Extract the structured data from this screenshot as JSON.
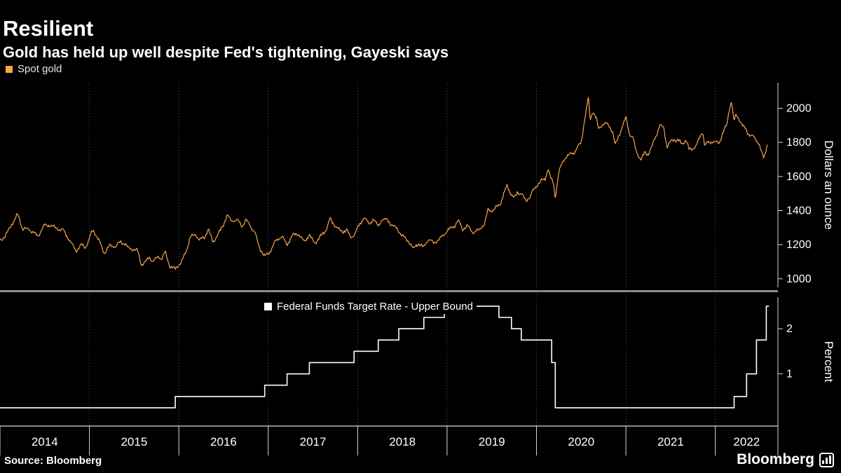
{
  "header": {
    "title": "Resilient",
    "subtitle": "Gold has held up well despite Fed's tightening, Gayeski says"
  },
  "footer": {
    "source": "Source: Bloomberg",
    "brand": "Bloomberg"
  },
  "colors": {
    "background": "#000000",
    "gold": "#F8A54A",
    "fed_line": "#FFFFFF",
    "axis": "#D9D9D9",
    "grid": "#555555",
    "separator": "#8C8C8C",
    "text": "#FFFFFF"
  },
  "x_axis": {
    "xmin": 2014.0,
    "xmax": 2022.7,
    "years": [
      "2014",
      "2015",
      "2016",
      "2017",
      "2018",
      "2019",
      "2020",
      "2021",
      "2022"
    ]
  },
  "chart_data": [
    {
      "type": "line",
      "name": "spot-gold",
      "legend": "Spot gold",
      "ylabel": "Dollars an ounce",
      "ylim": [
        950,
        2150
      ],
      "yticks": [
        1000,
        1200,
        1400,
        1600,
        1800,
        2000
      ],
      "grid": "vertical-dotted",
      "legend_position": "top-left",
      "series": [
        {
          "name": "Spot gold",
          "color": "#F8A54A",
          "noise": 13,
          "points": [
            [
              2014.0,
              1225
            ],
            [
              2014.06,
              1250
            ],
            [
              2014.13,
              1320
            ],
            [
              2014.2,
              1380
            ],
            [
              2014.25,
              1295
            ],
            [
              2014.33,
              1290
            ],
            [
              2014.42,
              1250
            ],
            [
              2014.5,
              1315
            ],
            [
              2014.58,
              1310
            ],
            [
              2014.65,
              1290
            ],
            [
              2014.71,
              1285
            ],
            [
              2014.79,
              1215
            ],
            [
              2014.85,
              1165
            ],
            [
              2014.92,
              1200
            ],
            [
              2014.96,
              1185
            ],
            [
              2015.04,
              1290
            ],
            [
              2015.1,
              1230
            ],
            [
              2015.17,
              1150
            ],
            [
              2015.23,
              1200
            ],
            [
              2015.29,
              1185
            ],
            [
              2015.35,
              1220
            ],
            [
              2015.42,
              1190
            ],
            [
              2015.48,
              1170
            ],
            [
              2015.54,
              1165
            ],
            [
              2015.58,
              1085
            ],
            [
              2015.63,
              1095
            ],
            [
              2015.67,
              1135
            ],
            [
              2015.71,
              1095
            ],
            [
              2015.77,
              1135
            ],
            [
              2015.81,
              1115
            ],
            [
              2015.85,
              1160
            ],
            [
              2015.9,
              1070
            ],
            [
              2015.96,
              1060
            ],
            [
              2016.02,
              1090
            ],
            [
              2016.08,
              1160
            ],
            [
              2016.13,
              1245
            ],
            [
              2016.19,
              1260
            ],
            [
              2016.23,
              1225
            ],
            [
              2016.29,
              1245
            ],
            [
              2016.33,
              1290
            ],
            [
              2016.38,
              1215
            ],
            [
              2016.44,
              1260
            ],
            [
              2016.5,
              1320
            ],
            [
              2016.54,
              1370
            ],
            [
              2016.6,
              1340
            ],
            [
              2016.65,
              1345
            ],
            [
              2016.71,
              1310
            ],
            [
              2016.75,
              1345
            ],
            [
              2016.81,
              1305
            ],
            [
              2016.85,
              1270
            ],
            [
              2016.9,
              1185
            ],
            [
              2016.96,
              1130
            ],
            [
              2017.02,
              1160
            ],
            [
              2017.08,
              1220
            ],
            [
              2017.15,
              1250
            ],
            [
              2017.21,
              1200
            ],
            [
              2017.27,
              1255
            ],
            [
              2017.33,
              1265
            ],
            [
              2017.4,
              1220
            ],
            [
              2017.46,
              1255
            ],
            [
              2017.52,
              1210
            ],
            [
              2017.58,
              1245
            ],
            [
              2017.65,
              1290
            ],
            [
              2017.69,
              1350
            ],
            [
              2017.75,
              1310
            ],
            [
              2017.81,
              1275
            ],
            [
              2017.88,
              1285
            ],
            [
              2017.92,
              1240
            ],
            [
              2017.96,
              1260
            ],
            [
              2018.02,
              1315
            ],
            [
              2018.07,
              1360
            ],
            [
              2018.13,
              1320
            ],
            [
              2018.17,
              1350
            ],
            [
              2018.23,
              1310
            ],
            [
              2018.27,
              1345
            ],
            [
              2018.33,
              1350
            ],
            [
              2018.38,
              1315
            ],
            [
              2018.44,
              1295
            ],
            [
              2018.5,
              1250
            ],
            [
              2018.56,
              1225
            ],
            [
              2018.62,
              1175
            ],
            [
              2018.67,
              1205
            ],
            [
              2018.73,
              1185
            ],
            [
              2018.79,
              1230
            ],
            [
              2018.85,
              1210
            ],
            [
              2018.9,
              1225
            ],
            [
              2018.96,
              1260
            ],
            [
              2019.02,
              1290
            ],
            [
              2019.08,
              1310
            ],
            [
              2019.13,
              1340
            ],
            [
              2019.17,
              1290
            ],
            [
              2019.23,
              1310
            ],
            [
              2019.29,
              1270
            ],
            [
              2019.35,
              1285
            ],
            [
              2019.42,
              1320
            ],
            [
              2019.46,
              1410
            ],
            [
              2019.52,
              1400
            ],
            [
              2019.56,
              1425
            ],
            [
              2019.6,
              1445
            ],
            [
              2019.65,
              1520
            ],
            [
              2019.67,
              1550
            ],
            [
              2019.71,
              1500
            ],
            [
              2019.75,
              1475
            ],
            [
              2019.79,
              1510
            ],
            [
              2019.83,
              1495
            ],
            [
              2019.88,
              1460
            ],
            [
              2019.92,
              1475
            ],
            [
              2019.96,
              1515
            ],
            [
              2020.02,
              1560
            ],
            [
              2020.06,
              1575
            ],
            [
              2020.1,
              1590
            ],
            [
              2020.13,
              1645
            ],
            [
              2020.16,
              1590
            ],
            [
              2020.19,
              1560
            ],
            [
              2020.21,
              1475
            ],
            [
              2020.23,
              1550
            ],
            [
              2020.25,
              1625
            ],
            [
              2020.29,
              1685
            ],
            [
              2020.33,
              1715
            ],
            [
              2020.38,
              1730
            ],
            [
              2020.42,
              1740
            ],
            [
              2020.46,
              1770
            ],
            [
              2020.5,
              1800
            ],
            [
              2020.54,
              1940
            ],
            [
              2020.58,
              2060
            ],
            [
              2020.6,
              1935
            ],
            [
              2020.63,
              1985
            ],
            [
              2020.67,
              1940
            ],
            [
              2020.69,
              1880
            ],
            [
              2020.73,
              1900
            ],
            [
              2020.77,
              1910
            ],
            [
              2020.81,
              1900
            ],
            [
              2020.85,
              1865
            ],
            [
              2020.88,
              1780
            ],
            [
              2020.92,
              1840
            ],
            [
              2020.96,
              1895
            ],
            [
              2021.0,
              1945
            ],
            [
              2021.04,
              1850
            ],
            [
              2021.08,
              1825
            ],
            [
              2021.1,
              1775
            ],
            [
              2021.13,
              1730
            ],
            [
              2021.17,
              1695
            ],
            [
              2021.21,
              1740
            ],
            [
              2021.25,
              1730
            ],
            [
              2021.29,
              1775
            ],
            [
              2021.33,
              1830
            ],
            [
              2021.38,
              1900
            ],
            [
              2021.42,
              1890
            ],
            [
              2021.46,
              1775
            ],
            [
              2021.5,
              1805
            ],
            [
              2021.54,
              1815
            ],
            [
              2021.58,
              1815
            ],
            [
              2021.63,
              1790
            ],
            [
              2021.67,
              1815
            ],
            [
              2021.71,
              1755
            ],
            [
              2021.75,
              1765
            ],
            [
              2021.79,
              1785
            ],
            [
              2021.83,
              1830
            ],
            [
              2021.86,
              1865
            ],
            [
              2021.88,
              1785
            ],
            [
              2021.92,
              1795
            ],
            [
              2021.96,
              1805
            ],
            [
              2022.0,
              1800
            ],
            [
              2022.04,
              1790
            ],
            [
              2022.08,
              1855
            ],
            [
              2022.13,
              1905
            ],
            [
              2022.15,
              1975
            ],
            [
              2022.18,
              2045
            ],
            [
              2022.21,
              1925
            ],
            [
              2022.23,
              1955
            ],
            [
              2022.27,
              1935
            ],
            [
              2022.31,
              1895
            ],
            [
              2022.35,
              1865
            ],
            [
              2022.38,
              1845
            ],
            [
              2022.42,
              1840
            ],
            [
              2022.44,
              1820
            ],
            [
              2022.48,
              1805
            ],
            [
              2022.52,
              1740
            ],
            [
              2022.54,
              1705
            ],
            [
              2022.56,
              1735
            ],
            [
              2022.58,
              1790
            ]
          ]
        }
      ]
    },
    {
      "type": "step-line",
      "name": "fed-funds-upper-bound",
      "legend": "Federal Funds Target Rate - Upper Bound",
      "ylabel": "Percent",
      "ylim": [
        0,
        2.7
      ],
      "yticks": [
        1,
        2
      ],
      "legend_position": "inside-top",
      "series": [
        {
          "name": "Federal Funds Target Rate - Upper Bound",
          "color": "#FFFFFF",
          "x_end": 2022.6,
          "points": [
            [
              2014.0,
              0.25
            ],
            [
              2015.96,
              0.5
            ],
            [
              2016.96,
              0.75
            ],
            [
              2017.21,
              1.0
            ],
            [
              2017.46,
              1.25
            ],
            [
              2017.96,
              1.5
            ],
            [
              2018.23,
              1.75
            ],
            [
              2018.46,
              2.0
            ],
            [
              2018.74,
              2.25
            ],
            [
              2018.97,
              2.5
            ],
            [
              2019.58,
              2.25
            ],
            [
              2019.72,
              2.0
            ],
            [
              2019.83,
              1.75
            ],
            [
              2020.17,
              1.25
            ],
            [
              2020.21,
              0.25
            ],
            [
              2022.21,
              0.5
            ],
            [
              2022.35,
              1.0
            ],
            [
              2022.46,
              1.75
            ],
            [
              2022.57,
              2.5
            ]
          ]
        }
      ]
    }
  ]
}
